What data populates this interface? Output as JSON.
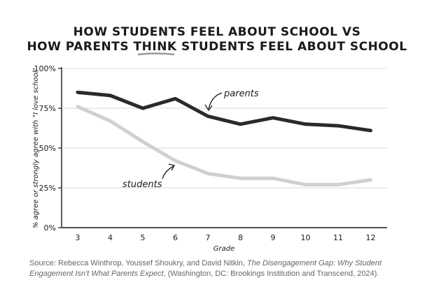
{
  "title_line1": "HOW STUDENTS FEEL ABOUT SCHOOL VS",
  "title_line2_pre": "HOW PARENTS ",
  "title_line2_emph": "THINK",
  "title_line2_post": " STUDENTS FEEL ABOUT SCHOOL",
  "source": {
    "pre": "Source: Rebecca Winthrop, Youssef Shoukry, and David Nitkin, ",
    "book": "The Disengagement Gap: Why Student Engagement Isn't What Parents Expect",
    "post": ", (Washington, DC: Brookings Institution and Transcend, 2024)."
  },
  "colors": {
    "parents": "#2a2a2a",
    "students": "#d0d0d0",
    "axis": "#1a1a1a",
    "grid": "#cccccc"
  },
  "chart_data": {
    "type": "line",
    "title": "HOW STUDENTS FEEL ABOUT SCHOOL VS HOW PARENTS THINK STUDENTS FEEL ABOUT SCHOOL",
    "xlabel": "Grade",
    "ylabel": "% agree or strongly agree with \"I love school\"",
    "categories": [
      "3",
      "4",
      "5",
      "6",
      "7",
      "8",
      "9",
      "10",
      "11",
      "12"
    ],
    "yticks": [
      "0%",
      "25%",
      "50%",
      "75%",
      "100%"
    ],
    "ylim": [
      0,
      100
    ],
    "grid": true,
    "series": [
      {
        "name": "parents",
        "values": [
          85,
          83,
          75,
          81,
          70,
          65,
          69,
          65,
          64,
          61
        ]
      },
      {
        "name": "students",
        "values": [
          76,
          67,
          54,
          42,
          34,
          31,
          31,
          27,
          27,
          30
        ]
      }
    ]
  }
}
